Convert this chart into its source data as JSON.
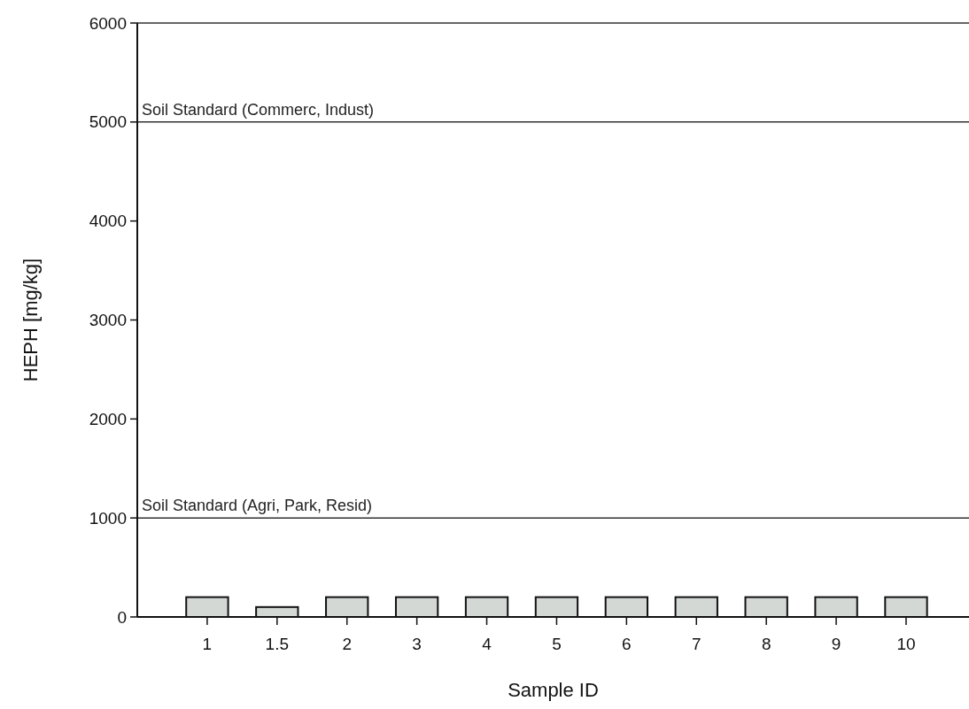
{
  "chart_data": {
    "type": "bar",
    "xlabel": "Sample ID",
    "ylabel": "HEPH [mg/kg]",
    "categories": [
      "1",
      "1.5",
      "2",
      "3",
      "4",
      "5",
      "6",
      "7",
      "8",
      "9",
      "10"
    ],
    "values": [
      200,
      100,
      200,
      200,
      200,
      200,
      200,
      200,
      200,
      200,
      200
    ],
    "color": "#d3d8d5",
    "ylim": [
      0,
      6000
    ],
    "yticks": [
      0,
      1000,
      2000,
      3000,
      4000,
      5000,
      6000
    ],
    "ref_lines": [
      {
        "axis": "y",
        "value": 1000,
        "label": "Soil Standard (Agri, Park, Resid)",
        "color": "#333333"
      },
      {
        "axis": "y",
        "value": 5000,
        "label": "Soil Standard (Commerc, Indust)",
        "color": "#333333"
      }
    ],
    "grid": false
  }
}
